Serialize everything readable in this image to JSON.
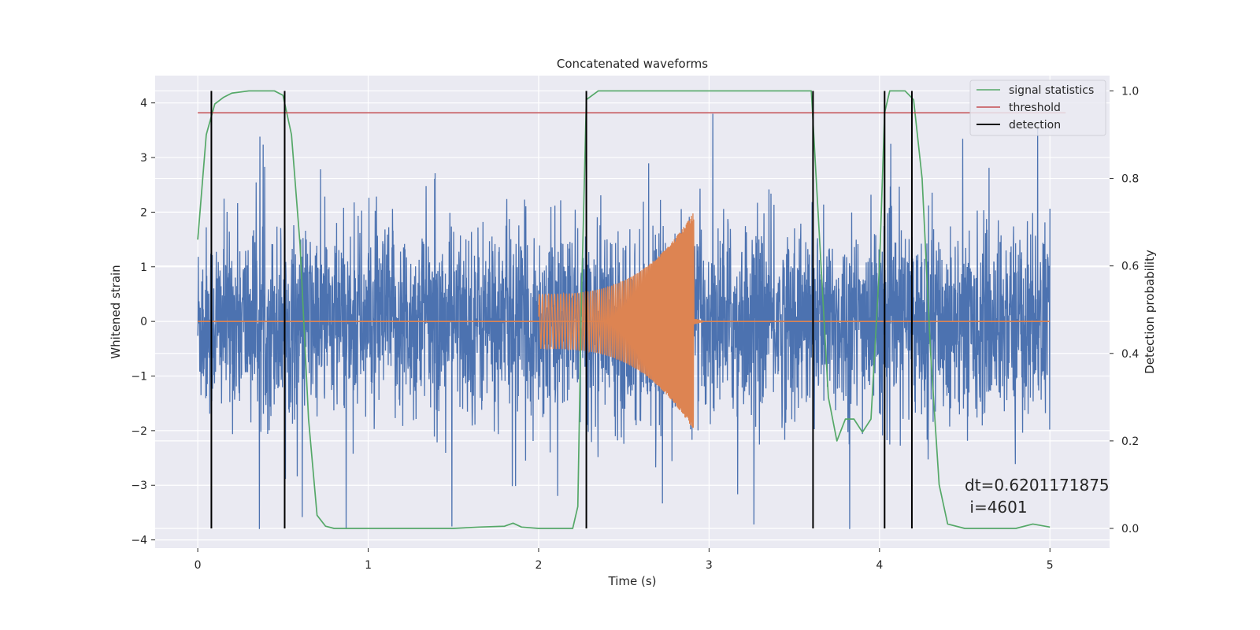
{
  "chart_data": {
    "type": "line",
    "title": "Concatenated waveforms",
    "xlabel": "Time (s)",
    "ylabel": "Whitened strain",
    "y2label": "Detection probability",
    "xlim": [
      -0.25,
      5.35
    ],
    "ylim": [
      -4.15,
      4.5
    ],
    "y2lim": [
      -0.045,
      1.035
    ],
    "x_ticks": [
      0,
      1,
      2,
      3,
      4,
      5
    ],
    "y_ticks": [
      -4,
      -3,
      -2,
      -1,
      0,
      1,
      2,
      3,
      4
    ],
    "y2_ticks": [
      0.0,
      0.2,
      0.4,
      0.6,
      0.8,
      1.0
    ],
    "x_tick_labels": [
      "0",
      "1",
      "2",
      "3",
      "4",
      "5"
    ],
    "y_tick_labels": [
      "−4",
      "−3",
      "−2",
      "−1",
      "0",
      "1",
      "2",
      "3",
      "4"
    ],
    "y2_tick_labels": [
      "0.0",
      "0.2",
      "0.4",
      "0.6",
      "0.8",
      "1.0"
    ],
    "grid": true,
    "legend_position": "top-right",
    "series": [
      {
        "name": "",
        "kind": "noise",
        "axis": "left",
        "color": "#4c72b0",
        "x_range": [
          0,
          5
        ],
        "typical_range": [
          -1.2,
          1.2
        ],
        "max_abs": 3.8
      },
      {
        "name": "",
        "kind": "chirp",
        "axis": "left",
        "color": "#dd8452",
        "x_range": [
          0,
          5
        ],
        "chirp_start": 2.0,
        "chirp_end": 2.91,
        "amplitude_start": 0.5,
        "amplitude_end": 2.0
      },
      {
        "name": "signal statistics",
        "kind": "line",
        "axis": "right",
        "color": "#55a868",
        "x": [
          0,
          0.05,
          0.1,
          0.15,
          0.2,
          0.3,
          0.4,
          0.45,
          0.5,
          0.55,
          0.6,
          0.65,
          0.7,
          0.75,
          0.8,
          1.0,
          1.5,
          1.65,
          1.8,
          1.85,
          1.9,
          2.0,
          2.2,
          2.23,
          2.25,
          2.28,
          2.35,
          3.5,
          3.6,
          3.65,
          3.7,
          3.75,
          3.8,
          3.85,
          3.9,
          3.95,
          4.0,
          4.03,
          4.06,
          4.1,
          4.15,
          4.2,
          4.25,
          4.3,
          4.35,
          4.4,
          4.5,
          4.8,
          4.9,
          5.0
        ],
        "y": [
          0.66,
          0.9,
          0.97,
          0.985,
          0.995,
          1.0,
          1.0,
          1.0,
          0.99,
          0.9,
          0.65,
          0.25,
          0.03,
          0.005,
          0.0,
          0.0,
          0.0,
          0.003,
          0.005,
          0.012,
          0.003,
          0.0,
          0.0,
          0.05,
          0.5,
          0.98,
          1.0,
          1.0,
          1.0,
          0.65,
          0.3,
          0.2,
          0.25,
          0.25,
          0.22,
          0.25,
          0.6,
          0.95,
          1.0,
          1.0,
          1.0,
          0.98,
          0.8,
          0.4,
          0.1,
          0.01,
          0.0,
          0.0,
          0.01,
          0.003
        ]
      },
      {
        "name": "threshold",
        "kind": "hline",
        "axis": "right",
        "color": "#c44e52",
        "value": 0.95,
        "x_range": [
          0,
          5
        ]
      },
      {
        "name": "detection",
        "kind": "vlines",
        "axis": "right",
        "color": "#000000",
        "x": [
          0.08,
          0.51,
          2.28,
          3.61,
          4.03,
          4.19
        ],
        "y_range": [
          0.0,
          1.0
        ]
      }
    ],
    "annotation": {
      "line1": "dt=0.6201171875",
      "line2": " i=4601",
      "x": 4.5,
      "y": -3.0
    }
  }
}
